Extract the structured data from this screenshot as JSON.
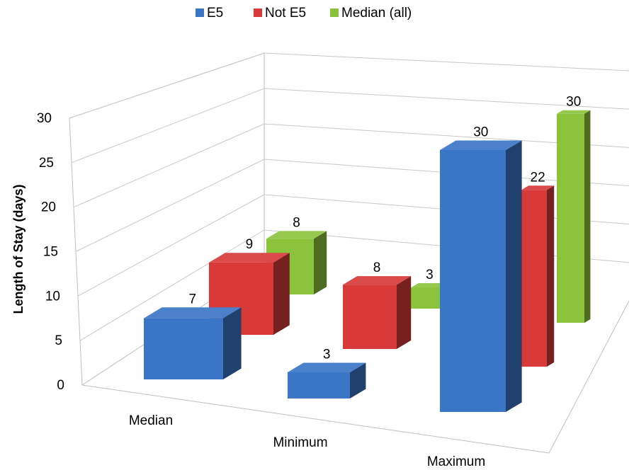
{
  "chart_data": {
    "type": "bar",
    "title": "",
    "xlabel": "",
    "ylabel": "Length of Stay (days)",
    "ylim": [
      0,
      30
    ],
    "yticks": [
      "0",
      "5",
      "10",
      "15",
      "20",
      "25",
      "30"
    ],
    "categories": [
      "Median",
      "Minimum",
      "Maximum"
    ],
    "series": [
      {
        "name": "E5",
        "color": "#3b75c6",
        "values": [
          7,
          3,
          30
        ],
        "labels": [
          "7",
          "3",
          "30"
        ]
      },
      {
        "name": "Not E5",
        "color": "#d83a3a",
        "values": [
          9,
          8,
          22
        ],
        "labels": [
          "9",
          "8",
          "22"
        ]
      },
      {
        "name": "Median (all)",
        "color": "#8cc33c",
        "values": [
          8,
          3,
          30
        ],
        "labels": [
          "8",
          "3",
          "30"
        ]
      }
    ],
    "legend_position": "top-center",
    "grid": true,
    "style": "3d-clustered-column"
  }
}
